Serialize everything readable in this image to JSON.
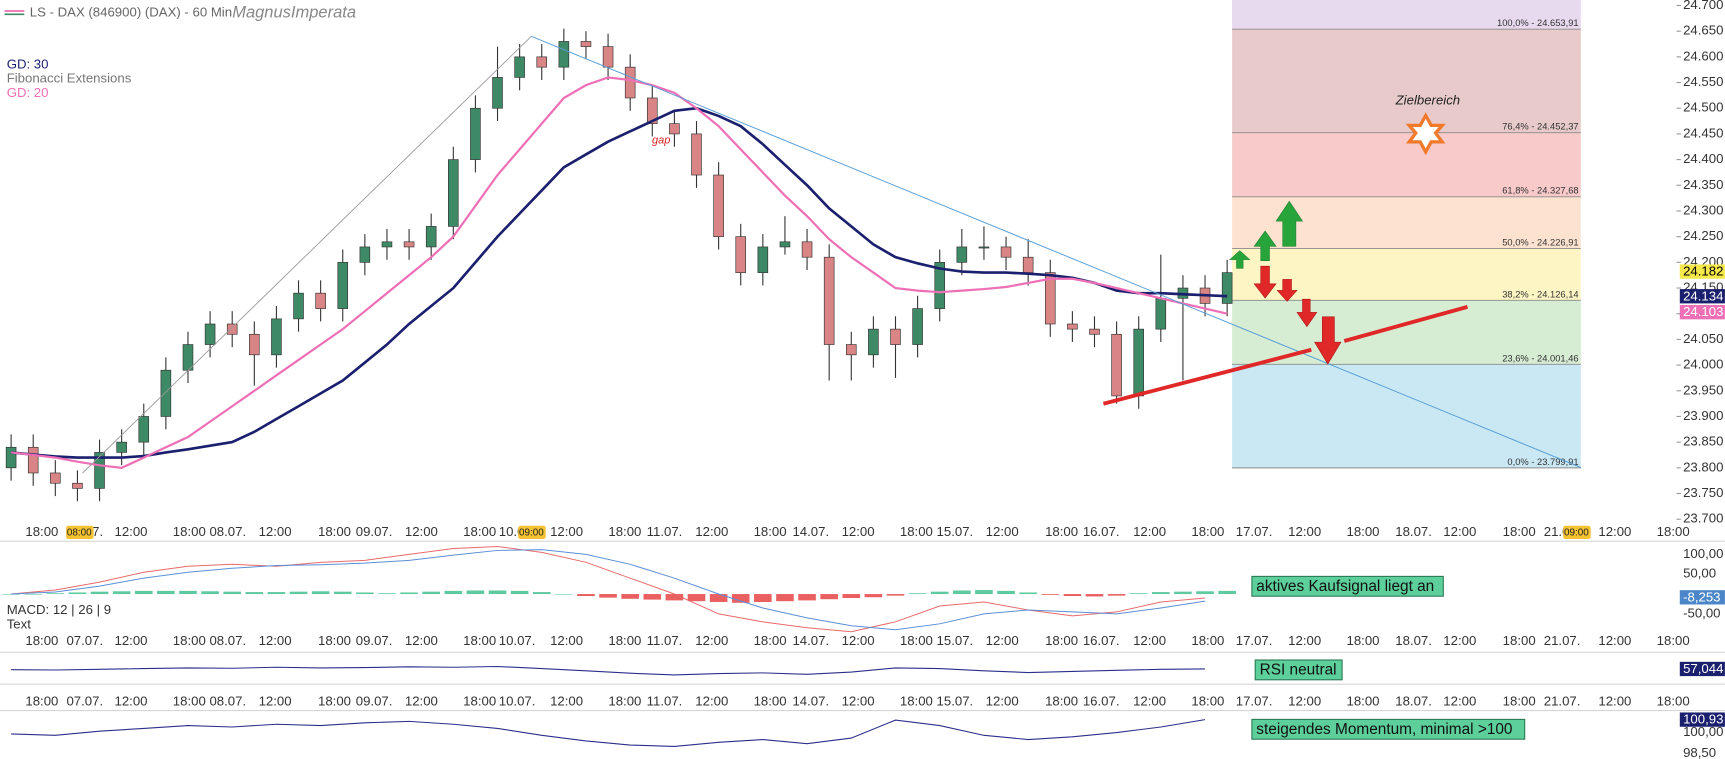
{
  "header": {
    "title": "LS - DAX (846900) (DAX) - 60 Min",
    "author": "MagnusImperata"
  },
  "chart_data": {
    "type": "candlestick",
    "legend": [
      {
        "name": "GD: 30",
        "color": "#1a1f6e"
      },
      {
        "name": "Fibonacci Extensions",
        "color": "#777777"
      },
      {
        "name": "GD: 20",
        "color": "#ee6fb6"
      }
    ],
    "up_color": "#3f8a66",
    "down_color": "#d98585",
    "open": [
      23800,
      23840,
      23790,
      23770,
      23760,
      23830,
      23850,
      23900,
      23990,
      24040,
      24080,
      24060,
      24020,
      24090,
      24140,
      24110,
      24200,
      24230,
      24240,
      24230,
      24270,
      24400,
      24500,
      24560,
      24600,
      24580,
      24630,
      24620,
      24580,
      24520,
      24470,
      24450,
      24370,
      24250,
      24180,
      24230,
      24240,
      24210,
      24040,
      24020,
      24070,
      24040,
      24110,
      24200,
      24230,
      24230,
      24210,
      24180,
      24080,
      24070,
      24060,
      23940,
      24070,
      24130,
      24150,
      24120
    ],
    "high": [
      23865,
      23865,
      23815,
      23795,
      23855,
      23875,
      23925,
      24015,
      24065,
      24105,
      24105,
      24085,
      24115,
      24165,
      24165,
      24225,
      24255,
      24265,
      24265,
      24295,
      24425,
      24525,
      24620,
      24625,
      24625,
      24655,
      24650,
      24645,
      24605,
      24545,
      24495,
      24475,
      24395,
      24275,
      24255,
      24290,
      24265,
      24235,
      24065,
      24095,
      24095,
      24135,
      24225,
      24265,
      24270,
      24250,
      24245,
      24205,
      24105,
      24095,
      24085,
      24095,
      24215,
      24175,
      24175,
      24205
    ],
    "low": [
      23775,
      23765,
      23745,
      23735,
      23735,
      23805,
      23825,
      23875,
      23965,
      24015,
      24035,
      23960,
      23995,
      24065,
      24085,
      24085,
      24175,
      24205,
      24205,
      24205,
      24245,
      24375,
      24475,
      24535,
      24555,
      24555,
      24595,
      24555,
      24495,
      24445,
      24425,
      24345,
      24225,
      24155,
      24155,
      24215,
      24185,
      23970,
      23970,
      23995,
      23975,
      24015,
      24085,
      24175,
      24205,
      24185,
      24155,
      24055,
      24045,
      24035,
      23925,
      23915,
      24045,
      23970,
      24095,
      24095
    ],
    "close": [
      23840,
      23790,
      23770,
      23760,
      23830,
      23850,
      23900,
      23990,
      24040,
      24080,
      24060,
      24020,
      24090,
      24140,
      24110,
      24200,
      24230,
      24240,
      24230,
      24270,
      24400,
      24500,
      24560,
      24600,
      24580,
      24630,
      24620,
      24580,
      24520,
      24470,
      24450,
      24370,
      24250,
      24180,
      24230,
      24240,
      24210,
      24040,
      24020,
      24070,
      24040,
      24110,
      24200,
      24230,
      24230,
      24210,
      24180,
      24080,
      24070,
      24060,
      23940,
      24070,
      24130,
      24150,
      24120,
      24180
    ],
    "series": [
      {
        "name": "GD: 30",
        "color": "#1a1f6e",
        "values": [
          23830,
          23826,
          23822,
          23820,
          23820,
          23820,
          23823,
          23830,
          23836,
          23843,
          23850,
          23870,
          23895,
          23920,
          23945,
          23970,
          24005,
          24040,
          24080,
          24115,
          24150,
          24200,
          24250,
          24295,
          24340,
          24385,
          24410,
          24435,
          24455,
          24475,
          24495,
          24500,
          24485,
          24465,
          24430,
          24390,
          24350,
          24305,
          24270,
          24235,
          24210,
          24198,
          24188,
          24182,
          24180,
          24180,
          24178,
          24175,
          24170,
          24160,
          24145,
          24140,
          24140,
          24138,
          24136,
          24134
        ]
      },
      {
        "name": "GD: 20",
        "color": "#ee6fb6",
        "values": [
          23830,
          23825,
          23820,
          23812,
          23805,
          23800,
          23820,
          23840,
          23860,
          23890,
          23920,
          23950,
          23980,
          24010,
          24040,
          24070,
          24105,
          24140,
          24175,
          24210,
          24250,
          24310,
          24370,
          24420,
          24470,
          24520,
          24545,
          24560,
          24555,
          24545,
          24530,
          24500,
          24465,
          24420,
          24375,
          24330,
          24290,
          24245,
          24210,
          24180,
          24150,
          24145,
          24142,
          24145,
          24148,
          24152,
          24160,
          24168,
          24168,
          24160,
          24150,
          24140,
          24130,
          24120,
          24110,
          24100
        ]
      }
    ],
    "ylim": [
      23700,
      24700
    ],
    "yticks": [
      {
        "value": 24700,
        "label": "24.700"
      },
      {
        "value": 24650,
        "label": "24.650"
      },
      {
        "value": 24600,
        "label": "24.600"
      },
      {
        "value": 24550,
        "label": "24.550"
      },
      {
        "value": 24500,
        "label": "24.500"
      },
      {
        "value": 24450,
        "label": "24.450"
      },
      {
        "value": 24400,
        "label": "24.400"
      },
      {
        "value": 24350,
        "label": "24.350"
      },
      {
        "value": 24300,
        "label": "24.300"
      },
      {
        "value": 24250,
        "label": "24.250"
      },
      {
        "value": 24200,
        "label": "24.200"
      },
      {
        "value": 24150,
        "label": "24.150"
      },
      {
        "value": 24100,
        "label": "24.100"
      },
      {
        "value": 24050,
        "label": "24.050"
      },
      {
        "value": 24000,
        "label": "24.000"
      },
      {
        "value": 23950,
        "label": "23.950"
      },
      {
        "value": 23900,
        "label": "23.900"
      },
      {
        "value": 23850,
        "label": "23.850"
      },
      {
        "value": 23800,
        "label": "23.800"
      },
      {
        "value": 23750,
        "label": "23.750"
      },
      {
        "value": 23700,
        "label": "23.700"
      }
    ],
    "price_tags": [
      {
        "value": 24182,
        "label": "24.182",
        "color": "#f5e84a"
      },
      {
        "value": 24134,
        "label": "24.134",
        "color": "#1a1f6e"
      },
      {
        "value": 24103,
        "label": "24.103",
        "color": "#ee6fb6"
      }
    ],
    "fib": {
      "levels": [
        {
          "value": 24653.91,
          "label": "100,0% - 24.653,91"
        },
        {
          "value": 24452.37,
          "label": "76,4% - 24.452,37"
        },
        {
          "value": 24327.68,
          "label": "61,8% - 24.327,68"
        },
        {
          "value": 24226.91,
          "label": "50,0% - 24.226,91"
        },
        {
          "value": 24126.14,
          "label": "38,2% - 24.126,14"
        },
        {
          "value": 24001.46,
          "label": "23,6% - 24.001,46"
        },
        {
          "value": 23799.91,
          "label": "0,0% - 23.799,91"
        }
      ],
      "zone_colors": [
        "#e7d9ee",
        "#e8caca",
        "#f8caca",
        "#fde2cf",
        "#fdf6c4",
        "#d6ecd3",
        "#c9e8f4"
      ]
    },
    "annotations": {
      "gap": "gap",
      "target": "Zielbereich"
    },
    "xlabels": [
      "18:00",
      "07.07.",
      "12:00",
      "18:00",
      "08.07.",
      "12:00",
      "18:00",
      "09.07.",
      "12:00",
      "18:00",
      "10.07.",
      "12:00",
      "18:00",
      "11.07.",
      "12:00",
      "18:00",
      "14.07.",
      "12:00",
      "18:00",
      "15.07.",
      "12:00",
      "18:00",
      "16.07.",
      "12:00",
      "18:00",
      "17.07.",
      "12:00",
      "18:00",
      "18.07.",
      "12:00",
      "18:00",
      "21.07.",
      "12:00",
      "18:00"
    ],
    "cursor_labels": [
      "08:00",
      "09:00",
      "09:00"
    ],
    "macd": {
      "title": "MACD: 12 | 26 | 9",
      "subtitle": "Text",
      "histogram": [
        0,
        0,
        2,
        4,
        6,
        7,
        8,
        8,
        8,
        7,
        6,
        5,
        5,
        6,
        7,
        6,
        4,
        2,
        4,
        6,
        8,
        9,
        9,
        8,
        5,
        0,
        -5,
        -9,
        -12,
        -14,
        -16,
        -18,
        -20,
        -22,
        -20,
        -18,
        -16,
        -13,
        -10,
        -8,
        -4,
        2,
        6,
        9,
        10,
        8,
        4,
        -2,
        -5,
        -6,
        -4,
        2,
        5,
        6,
        7,
        8
      ],
      "pos_color": "#5fc9a0",
      "neg_color": "#ea5f5f",
      "series": [
        {
          "color": "#e86a6a",
          "values": [
            0,
            10,
            30,
            55,
            70,
            75,
            70,
            80,
            85,
            100,
            115,
            120,
            105,
            80,
            40,
            0,
            -50,
            -70,
            -85,
            -95,
            -70,
            -30,
            -20,
            -40,
            -55,
            -45,
            -20,
            -10
          ]
        },
        {
          "color": "#5b8fd6",
          "values": [
            0,
            5,
            20,
            40,
            55,
            65,
            72,
            74,
            78,
            85,
            98,
            110,
            112,
            100,
            75,
            40,
            0,
            -35,
            -60,
            -80,
            -90,
            -75,
            -50,
            -40,
            -45,
            -50,
            -35,
            -18
          ]
        }
      ],
      "ylim": [
        -97,
        125
      ],
      "yticks": [
        {
          "value": 100,
          "label": "100,00"
        },
        {
          "value": 50,
          "label": "50,00"
        },
        {
          "value": -50,
          "label": "-50,00"
        }
      ],
      "tag": {
        "value": -8.253,
        "label": "-8,253"
      },
      "note": "aktives Kaufsignal liegt an"
    },
    "rsi": {
      "color": "#2b2f8a",
      "values": [
        55,
        54,
        56,
        58,
        60,
        59,
        62,
        60,
        61,
        63,
        62,
        64,
        58,
        52,
        45,
        40,
        44,
        46,
        42,
        48,
        60,
        58,
        52,
        47,
        50,
        53,
        56,
        57.044
      ],
      "ylim": [
        20,
        95
      ],
      "tag": {
        "value": 57.044,
        "label": "57,044"
      },
      "note": "RSI neutral"
    },
    "momentum": {
      "color": "#2b2f8a",
      "values": [
        99.9,
        99.8,
        100.1,
        100.3,
        100.5,
        100.4,
        100.6,
        100.5,
        100.7,
        100.8,
        100.6,
        100.3,
        99.8,
        99.4,
        99.1,
        99.0,
        99.3,
        99.5,
        99.2,
        99.6,
        100.9,
        100.5,
        99.8,
        99.5,
        99.7,
        100.0,
        100.4,
        100.93
      ],
      "ylim": [
        98.1,
        101.42
      ],
      "yticks": [
        {
          "value": 100,
          "label": "100,00"
        },
        {
          "value": 98.5,
          "label": "98,50"
        }
      ],
      "tag": {
        "value": 100.93,
        "label": "100,93"
      },
      "note": "steigendes Momentum, minimal >100"
    }
  }
}
